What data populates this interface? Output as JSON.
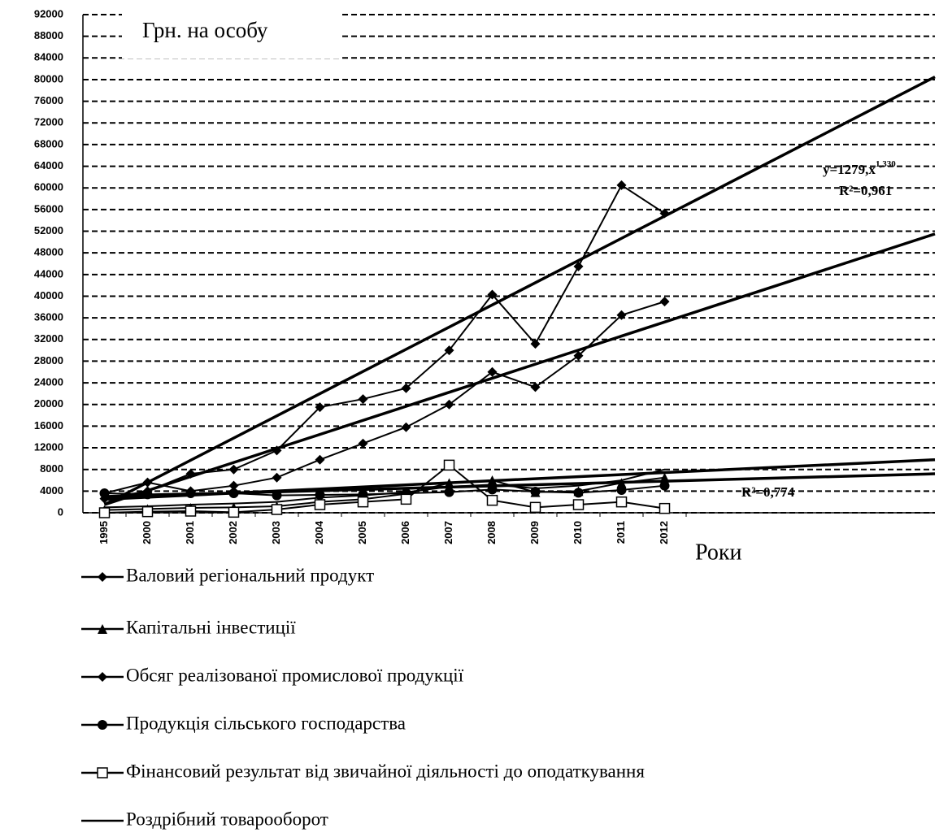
{
  "chart_data": {
    "type": "line",
    "title": "Грн. на особу",
    "x_label": "Роки",
    "categories": [
      "1995",
      "2000",
      "2001",
      "2002",
      "2003",
      "2004",
      "2005",
      "2006",
      "2007",
      "2008",
      "2009",
      "2010",
      "2011",
      "2012"
    ],
    "ylim": [
      0,
      92000
    ],
    "yticks": [
      0,
      4000,
      8000,
      12000,
      16000,
      20000,
      24000,
      28000,
      32000,
      36000,
      40000,
      44000,
      48000,
      52000,
      56000,
      60000,
      64000,
      68000,
      72000,
      76000,
      80000,
      84000,
      88000,
      92000
    ],
    "grid": true,
    "series": [
      {
        "name": "Валовий регіональний продукт",
        "color": "#000000",
        "marker": "diamond",
        "values": [
          3600,
          5600,
          4000,
          5000,
          6500,
          9800,
          12800,
          15800,
          20000,
          26000,
          23200,
          29000,
          36500,
          39000
        ]
      },
      {
        "name": "Капітальні інвестиції",
        "color": "#000000",
        "marker": "triangle",
        "values": [
          500,
          700,
          900,
          1000,
          1200,
          2000,
          2500,
          3500,
          5500,
          6000,
          3800,
          4000,
          5500,
          6500
        ]
      },
      {
        "name": "Обсяг реалізованої промислової продукції",
        "color": "#000000",
        "marker": "diamond",
        "values": [
          2600,
          4000,
          7200,
          8000,
          11500,
          19500,
          21000,
          23000,
          30000,
          40300,
          31200,
          45500,
          60500,
          55300
        ]
      },
      {
        "name": "Продукція сільського господарства",
        "color": "#000000",
        "marker": "circle",
        "values": [
          3600,
          3400,
          3600,
          3600,
          3200,
          3300,
          3400,
          3600,
          3800,
          4300,
          3900,
          3700,
          4200,
          5000
        ]
      },
      {
        "name": "Фінансовий результат від звичайної діяльності до оподаткування",
        "color": "#000000",
        "marker": "square",
        "values": [
          0,
          200,
          300,
          100,
          600,
          1500,
          2000,
          2500,
          8800,
          2300,
          1000,
          1500,
          2000,
          800
        ]
      },
      {
        "name": "Роздрібний товарооборот",
        "color": "#000000",
        "marker": "none",
        "values": [
          1000,
          1200,
          1500,
          1700,
          2000,
          2800,
          3200,
          3800,
          4800,
          5200,
          4500,
          5000,
          6000,
          8000
        ]
      }
    ],
    "trendlines": [
      {
        "values": [
          1500,
          80500
        ],
        "equation": "y=1279,x",
        "exponent": "1,330",
        "r2": "R²=0,961"
      },
      {
        "values": [
          1500,
          51500
        ]
      },
      {
        "values": [
          2500,
          9800
        ]
      },
      {
        "values": [
          3000,
          7200
        ],
        "r2": "R²=0,774"
      }
    ]
  }
}
